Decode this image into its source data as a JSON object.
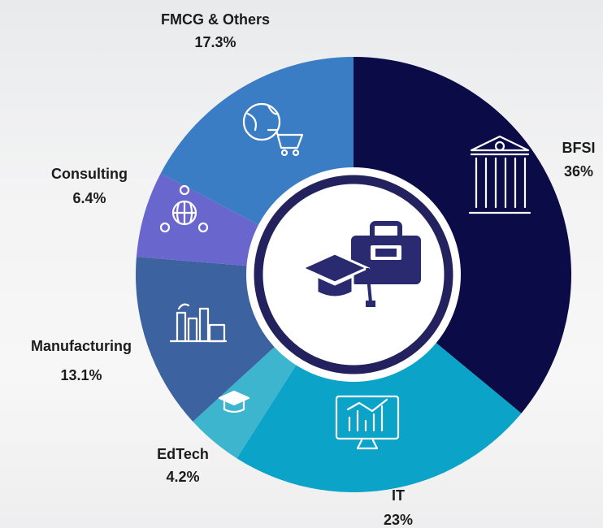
{
  "chart_data": {
    "type": "donut",
    "categories": [
      "BFSI",
      "IT",
      "EdTech",
      "Manufacturing",
      "Consulting",
      "FMCG & Others"
    ],
    "values": [
      36,
      23,
      4.2,
      13.1,
      6.4,
      17.3
    ],
    "value_labels": [
      "36%",
      "23%",
      "4.2%",
      "13.1%",
      "6.4%",
      "17.3%"
    ],
    "colors": [
      "#0b0b47",
      "#0ba3c8",
      "#3eb5cf",
      "#3d62a0",
      "#6966cd",
      "#3a7dc5"
    ]
  }
}
